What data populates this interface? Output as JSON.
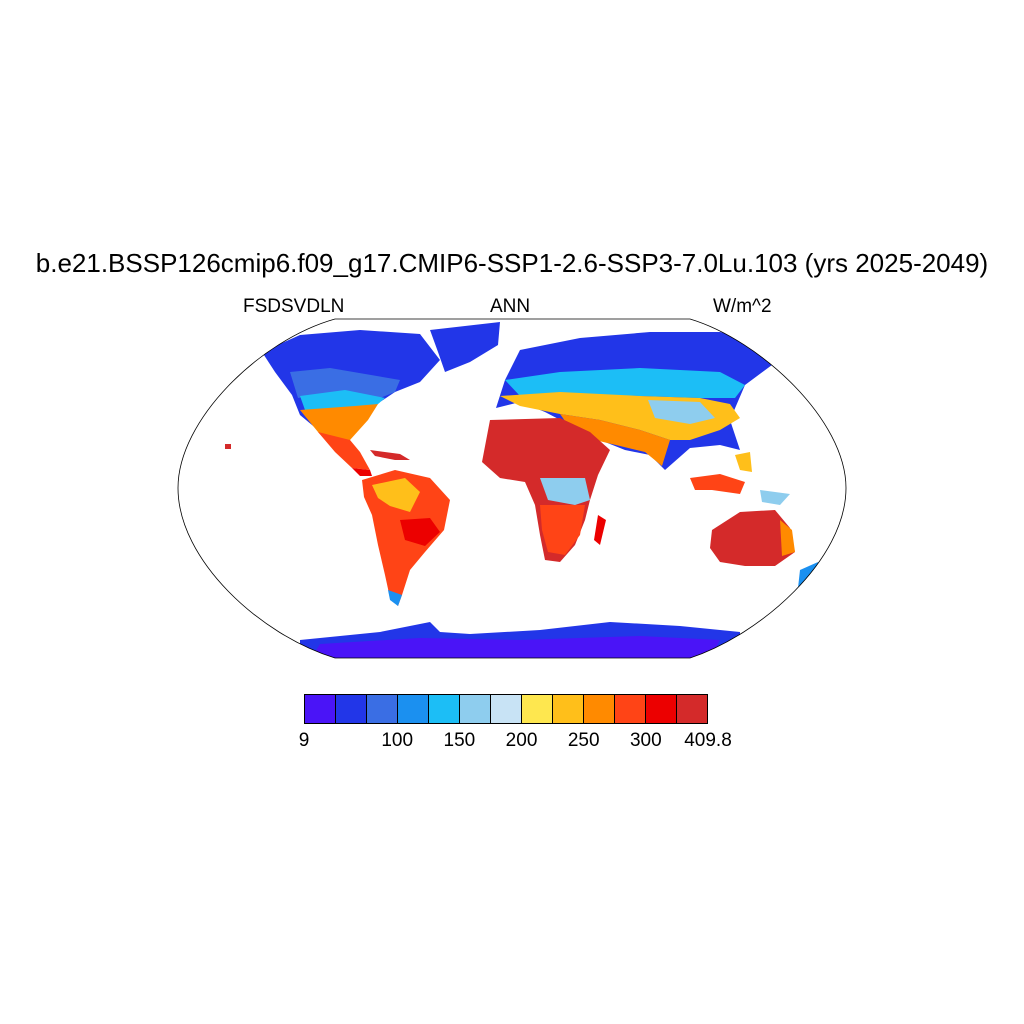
{
  "title": "b.e21.BSSP126cmip6.f09_g17.CMIP6-SSP1-2.6-SSP3-7.0Lu.103 (yrs 2025-2049)",
  "subtitle_left": "FSDSVDLN",
  "subtitle_center": "ANN",
  "subtitle_right": "W/m^2",
  "colorbar": {
    "colors": [
      "#4a14f7",
      "#2236e8",
      "#3a6ee4",
      "#1b90f0",
      "#1cbef6",
      "#8ecdee",
      "#c8e3f5",
      "#fee74f",
      "#ffbf1a",
      "#ff8a00",
      "#ff4416",
      "#ec0000",
      "#d42a2a"
    ],
    "labels": [
      {
        "text": "9",
        "edge": 0
      },
      {
        "text": "100",
        "edge": 3
      },
      {
        "text": "150",
        "edge": 5
      },
      {
        "text": "200",
        "edge": 7
      },
      {
        "text": "250",
        "edge": 9
      },
      {
        "text": "300",
        "edge": 11
      },
      {
        "text": "409.8",
        "edge": 13
      }
    ]
  }
}
